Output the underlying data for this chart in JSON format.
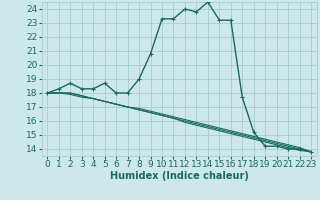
{
  "xlabel": "Humidex (Indice chaleur)",
  "bg_color": "#cce8e8",
  "grid_color": "#aacccc",
  "line_color": "#1a6b5a",
  "xlim": [
    -0.5,
    23.5
  ],
  "ylim": [
    13.5,
    24.5
  ],
  "xticks": [
    0,
    1,
    2,
    3,
    4,
    5,
    6,
    7,
    8,
    9,
    10,
    11,
    12,
    13,
    14,
    15,
    16,
    17,
    18,
    19,
    20,
    21,
    22,
    23
  ],
  "yticks": [
    14,
    15,
    16,
    17,
    18,
    19,
    20,
    21,
    22,
    23,
    24
  ],
  "lines": [
    {
      "x": [
        0,
        1,
        2,
        3,
        4,
        5,
        6,
        7,
        8,
        9,
        10,
        11,
        12,
        13,
        14,
        15,
        16,
        17,
        18,
        19,
        20,
        21,
        22,
        23
      ],
      "y": [
        18.0,
        18.3,
        18.7,
        18.3,
        18.3,
        18.7,
        18.0,
        18.0,
        19.0,
        20.8,
        23.3,
        23.3,
        24.0,
        23.8,
        24.5,
        23.2,
        23.2,
        17.7,
        15.2,
        14.2,
        14.2,
        14.0,
        14.0,
        13.8
      ],
      "marker": true
    },
    {
      "x": [
        0,
        1,
        2,
        3,
        4,
        5,
        6,
        7,
        8,
        9,
        10,
        11,
        12,
        13,
        14,
        15,
        16,
        17,
        18,
        19,
        20,
        21,
        22,
        23
      ],
      "y": [
        18.0,
        18.0,
        18.0,
        17.8,
        17.6,
        17.4,
        17.2,
        17.0,
        16.8,
        16.6,
        16.4,
        16.2,
        16.0,
        15.8,
        15.6,
        15.4,
        15.2,
        15.0,
        14.8,
        14.6,
        14.4,
        14.2,
        14.0,
        13.8
      ],
      "marker": false
    },
    {
      "x": [
        0,
        1,
        2,
        3,
        4,
        5,
        6,
        7,
        8,
        9,
        10,
        11,
        12,
        13,
        14,
        15,
        16,
        17,
        18,
        19,
        20,
        21,
        22,
        23
      ],
      "y": [
        18.0,
        18.0,
        18.0,
        17.8,
        17.6,
        17.4,
        17.2,
        17.0,
        16.8,
        16.6,
        16.4,
        16.2,
        15.9,
        15.7,
        15.5,
        15.3,
        15.1,
        14.9,
        14.7,
        14.5,
        14.3,
        14.1,
        13.9,
        13.8
      ],
      "marker": false
    },
    {
      "x": [
        0,
        1,
        2,
        3,
        4,
        5,
        6,
        7,
        8,
        9,
        10,
        11,
        12,
        13,
        14,
        15,
        16,
        17,
        18,
        19,
        20,
        21,
        22,
        23
      ],
      "y": [
        18.0,
        18.0,
        17.9,
        17.7,
        17.6,
        17.4,
        17.2,
        17.0,
        16.9,
        16.7,
        16.5,
        16.3,
        16.1,
        15.9,
        15.7,
        15.5,
        15.3,
        15.1,
        14.9,
        14.7,
        14.5,
        14.3,
        14.1,
        13.8
      ],
      "marker": false
    }
  ],
  "tick_fontsize": 6.5,
  "xlabel_fontsize": 7.0
}
